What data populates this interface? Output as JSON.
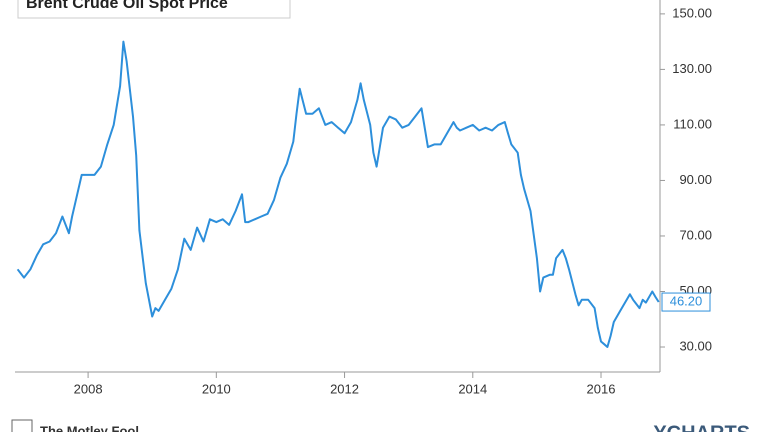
{
  "chart_data": {
    "type": "line",
    "title": "Brent Crude Oil Spot Price",
    "x": [
      2006.9,
      2007.0,
      2007.1,
      2007.2,
      2007.3,
      2007.4,
      2007.5,
      2007.6,
      2007.7,
      2007.75,
      2007.8,
      2007.9,
      2008.0,
      2008.1,
      2008.2,
      2008.3,
      2008.4,
      2008.5,
      2008.55,
      2008.6,
      2008.7,
      2008.75,
      2008.8,
      2008.9,
      2009.0,
      2009.05,
      2009.1,
      2009.2,
      2009.3,
      2009.4,
      2009.5,
      2009.6,
      2009.7,
      2009.8,
      2009.9,
      2010.0,
      2010.1,
      2010.2,
      2010.3,
      2010.4,
      2010.45,
      2010.5,
      2010.6,
      2010.7,
      2010.8,
      2010.9,
      2011.0,
      2011.1,
      2011.2,
      2011.25,
      2011.3,
      2011.4,
      2011.5,
      2011.6,
      2011.7,
      2011.8,
      2011.9,
      2012.0,
      2012.1,
      2012.2,
      2012.25,
      2012.3,
      2012.4,
      2012.45,
      2012.5,
      2012.55,
      2012.6,
      2012.7,
      2012.8,
      2012.9,
      2013.0,
      2013.1,
      2013.2,
      2013.25,
      2013.3,
      2013.4,
      2013.5,
      2013.6,
      2013.7,
      2013.75,
      2013.8,
      2013.9,
      2014.0,
      2014.1,
      2014.2,
      2014.3,
      2014.4,
      2014.5,
      2014.55,
      2014.6,
      2014.7,
      2014.75,
      2014.8,
      2014.9,
      2015.0,
      2015.05,
      2015.1,
      2015.2,
      2015.25,
      2015.3,
      2015.4,
      2015.45,
      2015.5,
      2015.6,
      2015.65,
      2015.7,
      2015.8,
      2015.9,
      2015.95,
      2016.0,
      2016.05,
      2016.1,
      2016.15,
      2016.2,
      2016.3,
      2016.4,
      2016.45,
      2016.5,
      2016.6,
      2016.65,
      2016.7,
      2016.8,
      2016.85,
      2016.9
    ],
    "series": [
      {
        "color": "#2d8fdb",
        "values": [
          58,
          55,
          58,
          63,
          67,
          68,
          71,
          77,
          71,
          77,
          82,
          92,
          92,
          92,
          95,
          103,
          110,
          124,
          140,
          133,
          113,
          99,
          72,
          53,
          41,
          44,
          43,
          47,
          51,
          58,
          69,
          65,
          73,
          68,
          76,
          75,
          76,
          74,
          79,
          85,
          75,
          75,
          76,
          77,
          78,
          83,
          91,
          96,
          104,
          114,
          123,
          114,
          114,
          116,
          110,
          111,
          109,
          107,
          111,
          119,
          125,
          119,
          110,
          100,
          95,
          102,
          109,
          113,
          112,
          109,
          110,
          113,
          116,
          109,
          102,
          103,
          103,
          107,
          111,
          109,
          108,
          109,
          110,
          108,
          109,
          108,
          110,
          111,
          107,
          103,
          100,
          92,
          87,
          79,
          62,
          50,
          55,
          56,
          56,
          62,
          65,
          62,
          58,
          49,
          45,
          47,
          47,
          44,
          37,
          32,
          31,
          30,
          34,
          39,
          43,
          47,
          49,
          47,
          44,
          47,
          46,
          50,
          48,
          46.2
        ]
      }
    ],
    "current_value_label": "46.20",
    "xlim": [
      2006.86,
      2016.92
    ],
    "xticks": [
      2008,
      2010,
      2012,
      2014,
      2016
    ],
    "ylim": [
      21,
      155
    ],
    "yticks": [
      {
        "value": 30,
        "label": "30.00"
      },
      {
        "value": 50,
        "label": "50.00"
      },
      {
        "value": 70,
        "label": "70.00"
      },
      {
        "value": 90,
        "label": "90.00"
      },
      {
        "value": 110,
        "label": "110.00"
      },
      {
        "value": 130,
        "label": "130.00"
      },
      {
        "value": 150,
        "label": "150.00"
      }
    ],
    "source": "The Motley Fool",
    "brand": "YCHARTS"
  }
}
